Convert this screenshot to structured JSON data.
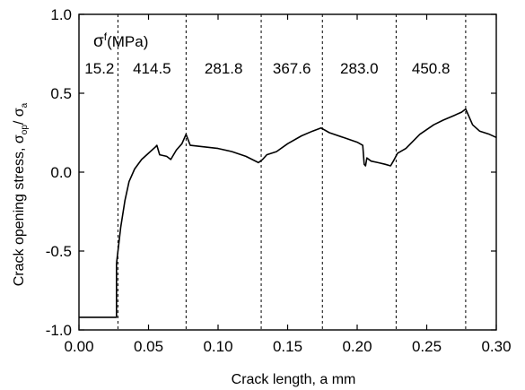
{
  "chart_data": {
    "type": "line",
    "xlabel": "Crack length, a mm",
    "ylabel_main": "Crack opening stress, σ",
    "ylabel_num_sub": "op",
    "ylabel_sep": "/ σ",
    "ylabel_den_sub": "a",
    "xlim": [
      0.0,
      0.3
    ],
    "ylim": [
      -1.0,
      1.0
    ],
    "x_ticks": [
      0.0,
      0.05,
      0.1,
      0.15,
      0.2,
      0.25,
      0.3
    ],
    "x_tick_labels": [
      "0.00",
      "0.05",
      "0.10",
      "0.15",
      "0.20",
      "0.25",
      "0.30"
    ],
    "y_ticks": [
      -1.0,
      -0.5,
      0.0,
      0.5,
      1.0
    ],
    "y_tick_labels": [
      "-1.0",
      "-0.5",
      "0.0",
      "0.5",
      "1.0"
    ],
    "legend_title": {
      "symbol": "σ",
      "sup": "f",
      "unit": "(MPa)"
    },
    "boundaries": [
      0.028,
      0.077,
      0.131,
      0.175,
      0.228,
      0.278
    ],
    "segment_values": [
      "15.2",
      "414.5",
      "281.8",
      "367.6",
      "283.0",
      "450.8"
    ],
    "series": [
      {
        "name": "crack opening stress ratio",
        "points": [
          [
            0.0,
            -0.92
          ],
          [
            0.027,
            -0.92
          ],
          [
            0.027,
            -0.58
          ],
          [
            0.03,
            -0.35
          ],
          [
            0.033,
            -0.18
          ],
          [
            0.036,
            -0.06
          ],
          [
            0.04,
            0.02
          ],
          [
            0.045,
            0.08
          ],
          [
            0.05,
            0.12
          ],
          [
            0.055,
            0.16
          ],
          [
            0.056,
            0.17
          ],
          [
            0.058,
            0.11
          ],
          [
            0.063,
            0.1
          ],
          [
            0.066,
            0.08
          ],
          [
            0.07,
            0.14
          ],
          [
            0.074,
            0.18
          ],
          [
            0.077,
            0.24
          ],
          [
            0.08,
            0.17
          ],
          [
            0.09,
            0.16
          ],
          [
            0.1,
            0.15
          ],
          [
            0.11,
            0.13
          ],
          [
            0.12,
            0.1
          ],
          [
            0.129,
            0.06
          ],
          [
            0.132,
            0.08
          ],
          [
            0.135,
            0.11
          ],
          [
            0.142,
            0.13
          ],
          [
            0.15,
            0.18
          ],
          [
            0.16,
            0.23
          ],
          [
            0.168,
            0.26
          ],
          [
            0.174,
            0.28
          ],
          [
            0.18,
            0.25
          ],
          [
            0.19,
            0.22
          ],
          [
            0.2,
            0.19
          ],
          [
            0.204,
            0.17
          ],
          [
            0.205,
            0.05
          ],
          [
            0.206,
            0.04
          ],
          [
            0.207,
            0.09
          ],
          [
            0.21,
            0.07
          ],
          [
            0.215,
            0.06
          ],
          [
            0.22,
            0.05
          ],
          [
            0.224,
            0.04
          ],
          [
            0.226,
            0.07
          ],
          [
            0.229,
            0.12
          ],
          [
            0.235,
            0.15
          ],
          [
            0.245,
            0.24
          ],
          [
            0.255,
            0.3
          ],
          [
            0.262,
            0.33
          ],
          [
            0.27,
            0.36
          ],
          [
            0.275,
            0.38
          ],
          [
            0.278,
            0.4
          ],
          [
            0.283,
            0.3
          ],
          [
            0.288,
            0.26
          ],
          [
            0.295,
            0.24
          ],
          [
            0.3,
            0.22
          ]
        ]
      }
    ]
  }
}
